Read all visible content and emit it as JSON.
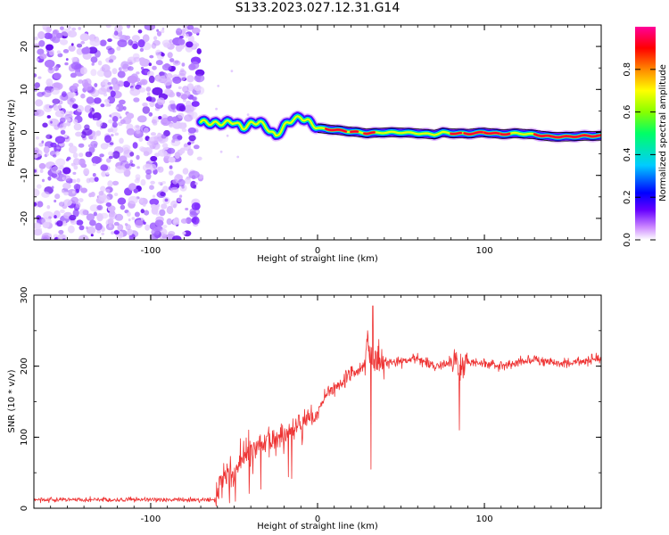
{
  "title": "S133.2023.027.12.31.G14",
  "chart_data": [
    {
      "type": "heatmap",
      "title": "S133.2023.027.12.31.G14",
      "xlabel": "Height of straight line (km)",
      "ylabel": "Frequency (Hz)",
      "xlim": [
        -170,
        170
      ],
      "ylim": [
        -25,
        25
      ],
      "xticks": [
        -100,
        0,
        100
      ],
      "yticks": [
        -20,
        -10,
        0,
        10,
        20
      ],
      "colorbar": {
        "label": "Normalized spectral amplitude",
        "range": [
          0.0,
          1.0
        ],
        "ticks": [
          "0.0",
          "0.2",
          "0.4",
          "0.6",
          "0.8"
        ],
        "colormap": [
          "#ffffff",
          "#cc88ff",
          "#6600ff",
          "#0000ff",
          "#00ccff",
          "#00ff66",
          "#88ff00",
          "#ffff00",
          "#ff8800",
          "#ff0000",
          "#ff0099"
        ]
      },
      "noise_region": {
        "x": [
          -170,
          -70
        ],
        "y": [
          -25,
          25
        ]
      },
      "ridge": {
        "x": [
          -70,
          -60,
          -50,
          -45,
          -40,
          -35,
          -30,
          -25,
          -20,
          -15,
          -10,
          -5,
          0,
          10,
          20,
          30,
          40,
          50,
          60,
          70,
          75,
          80,
          90,
          100,
          110,
          120,
          130,
          140,
          150,
          160,
          170
        ],
        "y": [
          2.5,
          2.0,
          2.5,
          1.0,
          2.0,
          2.5,
          1.0,
          -1.0,
          1.5,
          3.0,
          3.5,
          2.5,
          1.0,
          0.6,
          0.2,
          -0.2,
          0.0,
          0.0,
          -0.2,
          -0.5,
          0.0,
          -0.2,
          -0.3,
          0.0,
          -0.4,
          -0.2,
          -0.5,
          -1.0,
          -1.0,
          -0.8,
          -0.8
        ]
      }
    },
    {
      "type": "line",
      "xlabel": "Height of straight line (km)",
      "ylabel": "SNR (10 * v/v)",
      "xlim": [
        -170,
        170
      ],
      "ylim": [
        0,
        300
      ],
      "xticks": [
        -100,
        0,
        100
      ],
      "yticks": [
        0,
        100,
        200,
        300
      ],
      "color": "#ee3333",
      "series": [
        {
          "x": [
            -170,
            -150,
            -130,
            -110,
            -90,
            -70,
            -61,
            -58,
            -54,
            -50,
            -45,
            -40,
            -35,
            -30,
            -25,
            -20,
            -15,
            -10,
            -5,
            0,
            5,
            10,
            15,
            20,
            25,
            28,
            30,
            32,
            34,
            36,
            40,
            50,
            60,
            70,
            80,
            83,
            85,
            87,
            90,
            100,
            110,
            120,
            130,
            140,
            150,
            160,
            170
          ],
          "y": [
            12,
            12,
            12,
            12,
            12,
            12,
            12,
            40,
            55,
            45,
            70,
            80,
            90,
            95,
            100,
            100,
            112,
            118,
            128,
            135,
            160,
            170,
            178,
            190,
            195,
            200,
            230,
            210,
            205,
            208,
            205,
            205,
            210,
            200,
            205,
            210,
            190,
            200,
            205,
            205,
            200,
            205,
            210,
            205,
            205,
            208,
            210
          ]
        }
      ]
    }
  ]
}
